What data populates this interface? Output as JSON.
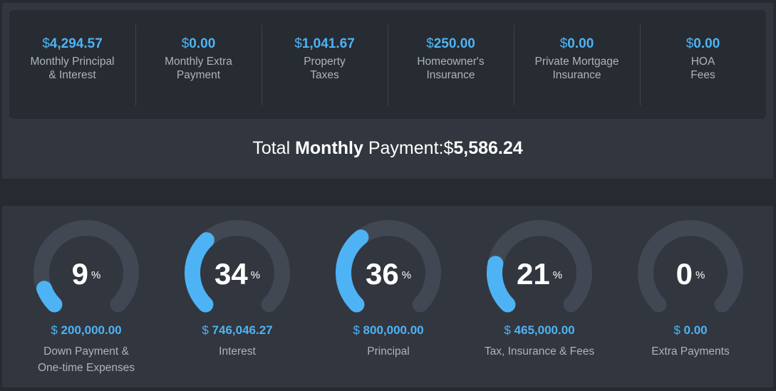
{
  "summary": {
    "items": [
      {
        "currency": "$",
        "amount": "4,294.57",
        "label_line1": "Monthly Principal",
        "label_line2": "& Interest"
      },
      {
        "currency": "$",
        "amount": "0.00",
        "label_line1": "Monthly Extra",
        "label_line2": "Payment"
      },
      {
        "currency": "$",
        "amount": "1,041.67",
        "label_line1": "Property",
        "label_line2": "Taxes"
      },
      {
        "currency": "$",
        "amount": "250.00",
        "label_line1": "Homeowner's",
        "label_line2": "Insurance"
      },
      {
        "currency": "$",
        "amount": "0.00",
        "label_line1": "Private Mortgage",
        "label_line2": "Insurance"
      },
      {
        "currency": "$",
        "amount": "0.00",
        "label_line1": "HOA",
        "label_line2": "Fees"
      }
    ],
    "total": {
      "prefix": "Total ",
      "bold_word": "Monthly",
      "suffix": " Payment:$",
      "amount": "5,586.24"
    }
  },
  "breakdown": {
    "percent_sign": "%",
    "track_color": "#424853",
    "fill_color": "#4db3f5",
    "gauges": [
      {
        "percent": 9,
        "currency": "$",
        "amount": "200,000.00",
        "label_line1": "Down Payment &",
        "label_line2": "One-time Expenses"
      },
      {
        "percent": 34,
        "currency": "$",
        "amount": "746,046.27",
        "label_line1": "Interest",
        "label_line2": ""
      },
      {
        "percent": 36,
        "currency": "$",
        "amount": "800,000.00",
        "label_line1": "Principal",
        "label_line2": ""
      },
      {
        "percent": 21,
        "currency": "$",
        "amount": "465,000.00",
        "label_line1": "Tax, Insurance & Fees",
        "label_line2": ""
      },
      {
        "percent": 0,
        "currency": "$",
        "amount": "0.00",
        "label_line1": "Extra Payments",
        "label_line2": ""
      }
    ]
  }
}
